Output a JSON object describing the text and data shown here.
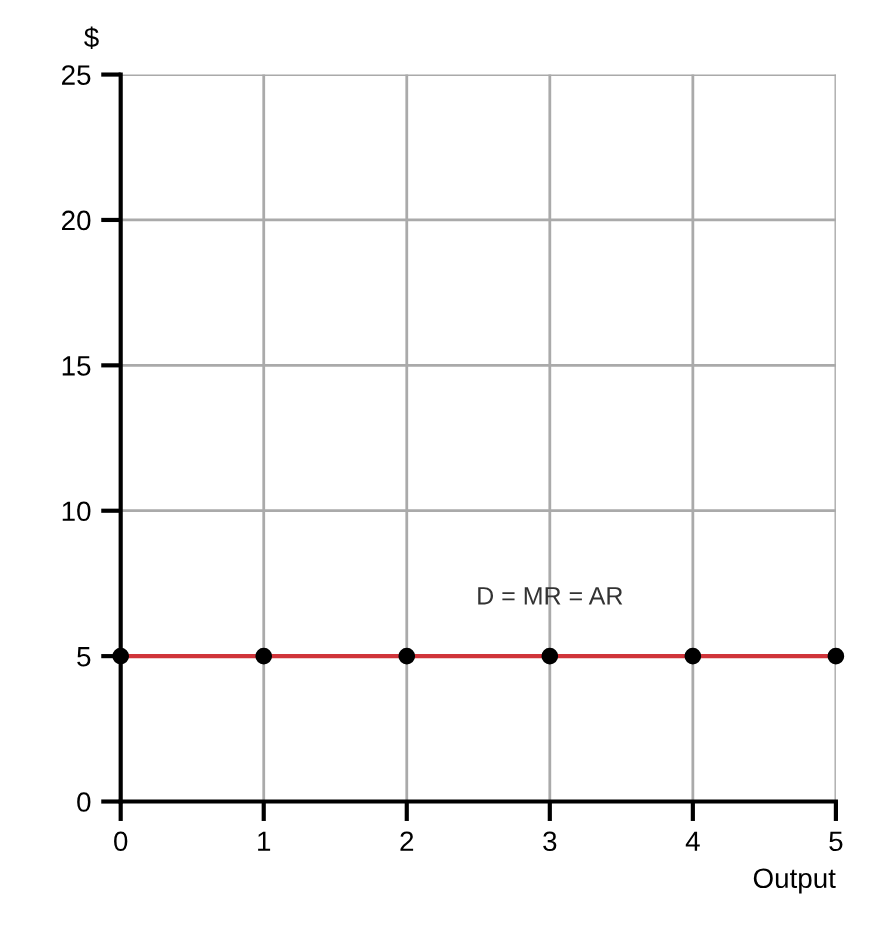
{
  "chart_data": {
    "type": "line",
    "xlabel": "Output",
    "ylabel": "$",
    "x": [
      0,
      1,
      2,
      3,
      4,
      5
    ],
    "series": [
      {
        "name": "D = MR = AR",
        "color": "#d0343a",
        "values": [
          5,
          5,
          5,
          5,
          5,
          5
        ]
      }
    ],
    "xlim": [
      0,
      5
    ],
    "ylim": [
      0,
      25
    ],
    "xticks": [
      0,
      1,
      2,
      3,
      4,
      5
    ],
    "yticks": [
      0,
      5,
      10,
      15,
      20,
      25
    ],
    "grid": true,
    "marker": "circle",
    "line_style": "solid"
  }
}
